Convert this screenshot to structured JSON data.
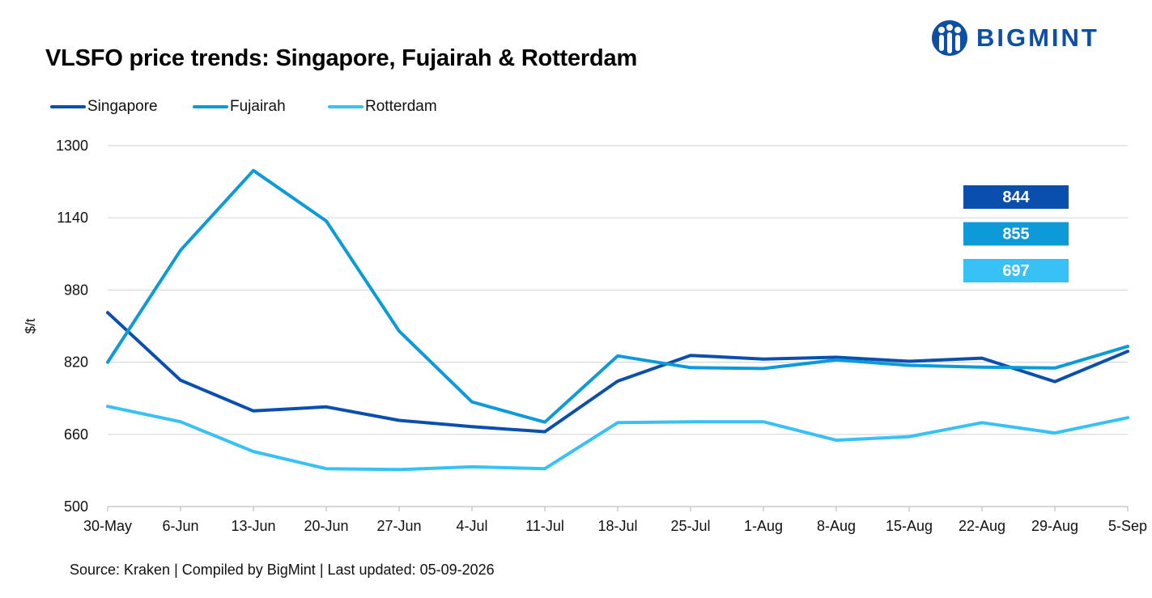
{
  "title": "VLSFO price trends: Singapore, Fujairah & Rotterdam",
  "logo": {
    "text": "BIGMINT",
    "icon": "bigmint-people-icon",
    "color": "#0d4ea6"
  },
  "source": "Source: Kraken | Compiled by BigMint | Last updated: 05-09-2026",
  "chart_data": {
    "type": "line",
    "title": "VLSFO price trends: Singapore, Fujairah & Rotterdam",
    "xlabel": "",
    "ylabel": "$/t",
    "categories": [
      "30-May",
      "6-Jun",
      "13-Jun",
      "20-Jun",
      "27-Jun",
      "4-Jul",
      "11-Jul",
      "18-Jul",
      "25-Jul",
      "1-Aug",
      "8-Aug",
      "15-Aug",
      "22-Aug",
      "29-Aug",
      "5-Sep"
    ],
    "ylim": [
      500,
      1300
    ],
    "yticks": [
      500,
      660,
      820,
      980,
      1140,
      1300
    ],
    "grid": true,
    "legend_position": "top-left",
    "series": [
      {
        "name": "Singapore",
        "color": "#0b4fae",
        "values": [
          930,
          780,
          712,
          721,
          691,
          677,
          666,
          778,
          835,
          827,
          831,
          822,
          829,
          777,
          844
        ]
      },
      {
        "name": "Fujairah",
        "color": "#0c9ad8",
        "values": [
          820,
          1068,
          1245,
          1133,
          889,
          732,
          687,
          834,
          808,
          806,
          825,
          813,
          809,
          807,
          855
        ]
      },
      {
        "name": "Rotterdam",
        "color": "#37c1f5",
        "values": [
          722,
          688,
          622,
          584,
          582,
          588,
          584,
          686,
          688,
          688,
          647,
          655,
          686,
          663,
          697
        ]
      }
    ],
    "value_labels": [
      {
        "series": "Singapore",
        "text": "844",
        "color": "#0b4fae"
      },
      {
        "series": "Fujairah",
        "text": "855",
        "color": "#0c9ad8"
      },
      {
        "series": "Rotterdam",
        "text": "697",
        "color": "#37c1f5"
      }
    ]
  }
}
